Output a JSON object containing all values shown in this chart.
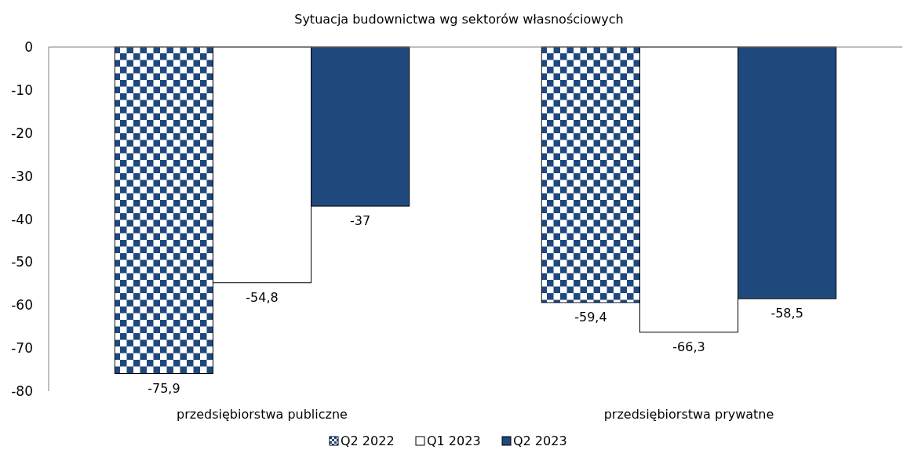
{
  "chart_data": {
    "type": "bar",
    "title": "Sytuacja budownictwa wg sektorów własnościowych",
    "categories": [
      "przedsiębiorstwa publiczne",
      "przedsiębiorstwa prywatne"
    ],
    "series": [
      {
        "name": "Q2 2022",
        "color": "#1f497d",
        "values": [
          -75.9,
          -59.4
        ],
        "value_labels": [
          "-75,9",
          "-59,4"
        ]
      },
      {
        "name": "Q1 2023",
        "color": "#ffffff",
        "values": [
          -54.8,
          -66.3
        ],
        "value_labels": [
          "-54,8",
          "-66,3"
        ]
      },
      {
        "name": "Q2 2023",
        "color": "#1f497d",
        "values": [
          -37,
          -58.5
        ],
        "value_labels": [
          "-37",
          "-58,5"
        ]
      }
    ],
    "ylim": [
      -80,
      0
    ],
    "yticks": [
      0,
      -10,
      -20,
      -30,
      -40,
      -50,
      -60,
      -70,
      -80
    ],
    "grid": false,
    "legend": "bottom"
  }
}
